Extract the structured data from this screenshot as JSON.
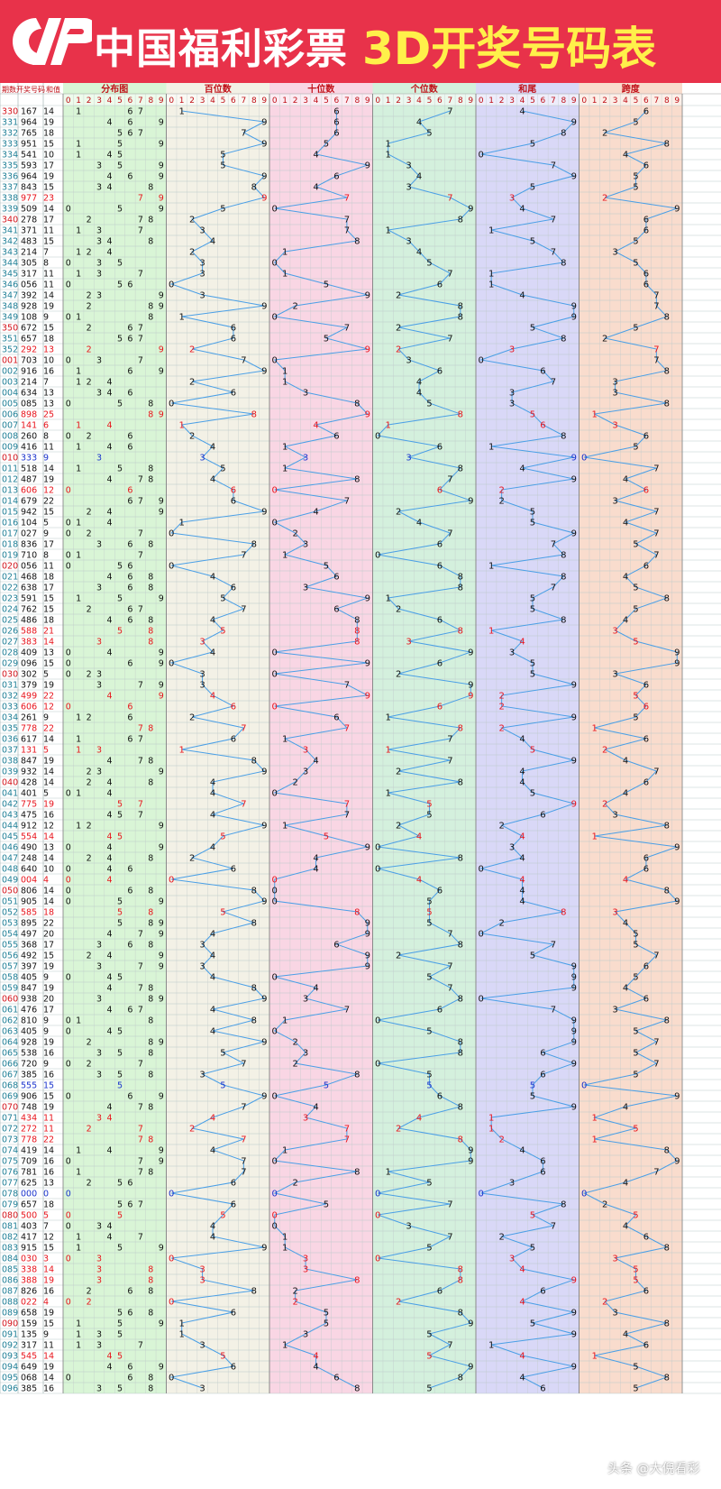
{
  "header": {
    "brand_name": "中国福利彩票",
    "chart_title": "3D开奖号码表",
    "logo_icon": "cwl-logo-icon"
  },
  "watermark": "头条 @大倪看彩",
  "colors": {
    "header_bg": "#e8324a",
    "title_yellow": "#fff04a",
    "line_blue": "#4a9fe6",
    "hot_red": "#e8141c",
    "rare_blue": "#1a33cc",
    "period_red": "#d4141c",
    "period_teal": "#1f7f96"
  },
  "chart_data": {
    "type": "table",
    "title": "3D开奖号码表",
    "column_headers": {
      "period": "期数",
      "number": "开奖号码",
      "sum": "和值"
    },
    "sections": [
      {
        "name": "分布图",
        "bg": "#d9f5d6"
      },
      {
        "name": "百位数",
        "bg": "#f3f1e6"
      },
      {
        "name": "十位数",
        "bg": "#f9d6e4"
      },
      {
        "name": "个位数",
        "bg": "#d4f0dd"
      },
      {
        "name": "和尾",
        "bg": "#d9d8f7"
      },
      {
        "name": "跨度",
        "bg": "#f9dccd"
      }
    ],
    "digit_labels": [
      "0",
      "1",
      "2",
      "3",
      "4",
      "5",
      "6",
      "7",
      "8",
      "9"
    ],
    "draws": [
      {
        "p": "330",
        "n": "167",
        "s": "14"
      },
      {
        "p": "331",
        "n": "964",
        "s": "19"
      },
      {
        "p": "332",
        "n": "765",
        "s": "18"
      },
      {
        "p": "333",
        "n": "951",
        "s": "15"
      },
      {
        "p": "334",
        "n": "541",
        "s": "10"
      },
      {
        "p": "335",
        "n": "593",
        "s": "17"
      },
      {
        "p": "336",
        "n": "964",
        "s": "19"
      },
      {
        "p": "337",
        "n": "843",
        "s": "15"
      },
      {
        "p": "338",
        "n": "977",
        "s": "23"
      },
      {
        "p": "339",
        "n": "509",
        "s": "14"
      },
      {
        "p": "340",
        "n": "278",
        "s": "17"
      },
      {
        "p": "341",
        "n": "371",
        "s": "11"
      },
      {
        "p": "342",
        "n": "483",
        "s": "15"
      },
      {
        "p": "343",
        "n": "214",
        "s": "7"
      },
      {
        "p": "344",
        "n": "305",
        "s": "8"
      },
      {
        "p": "345",
        "n": "317",
        "s": "11"
      },
      {
        "p": "346",
        "n": "056",
        "s": "11"
      },
      {
        "p": "347",
        "n": "392",
        "s": "14"
      },
      {
        "p": "348",
        "n": "928",
        "s": "19"
      },
      {
        "p": "349",
        "n": "108",
        "s": "9"
      },
      {
        "p": "350",
        "n": "672",
        "s": "15"
      },
      {
        "p": "351",
        "n": "657",
        "s": "18"
      },
      {
        "p": "352",
        "n": "292",
        "s": "13"
      },
      {
        "p": "001",
        "n": "703",
        "s": "10"
      },
      {
        "p": "002",
        "n": "916",
        "s": "16"
      },
      {
        "p": "003",
        "n": "214",
        "s": "7"
      },
      {
        "p": "004",
        "n": "634",
        "s": "13"
      },
      {
        "p": "005",
        "n": "085",
        "s": "13"
      },
      {
        "p": "006",
        "n": "898",
        "s": "25"
      },
      {
        "p": "007",
        "n": "141",
        "s": "6"
      },
      {
        "p": "008",
        "n": "260",
        "s": "8"
      },
      {
        "p": "009",
        "n": "416",
        "s": "11"
      },
      {
        "p": "010",
        "n": "333",
        "s": "9"
      },
      {
        "p": "011",
        "n": "518",
        "s": "14"
      },
      {
        "p": "012",
        "n": "487",
        "s": "19"
      },
      {
        "p": "013",
        "n": "606",
        "s": "12"
      },
      {
        "p": "014",
        "n": "679",
        "s": "22"
      },
      {
        "p": "015",
        "n": "942",
        "s": "15"
      },
      {
        "p": "016",
        "n": "104",
        "s": "5"
      },
      {
        "p": "017",
        "n": "027",
        "s": "9"
      },
      {
        "p": "018",
        "n": "836",
        "s": "17"
      },
      {
        "p": "019",
        "n": "710",
        "s": "8"
      },
      {
        "p": "020",
        "n": "056",
        "s": "11"
      },
      {
        "p": "021",
        "n": "468",
        "s": "18"
      },
      {
        "p": "022",
        "n": "638",
        "s": "17"
      },
      {
        "p": "023",
        "n": "591",
        "s": "15"
      },
      {
        "p": "024",
        "n": "762",
        "s": "15"
      },
      {
        "p": "025",
        "n": "486",
        "s": "18"
      },
      {
        "p": "026",
        "n": "588",
        "s": "21"
      },
      {
        "p": "027",
        "n": "383",
        "s": "14"
      },
      {
        "p": "028",
        "n": "409",
        "s": "13"
      },
      {
        "p": "029",
        "n": "096",
        "s": "15"
      },
      {
        "p": "030",
        "n": "302",
        "s": "5"
      },
      {
        "p": "031",
        "n": "379",
        "s": "19"
      },
      {
        "p": "032",
        "n": "499",
        "s": "22"
      },
      {
        "p": "033",
        "n": "606",
        "s": "12"
      },
      {
        "p": "034",
        "n": "261",
        "s": "9"
      },
      {
        "p": "035",
        "n": "778",
        "s": "22"
      },
      {
        "p": "036",
        "n": "617",
        "s": "14"
      },
      {
        "p": "037",
        "n": "131",
        "s": "5"
      },
      {
        "p": "038",
        "n": "847",
        "s": "19"
      },
      {
        "p": "039",
        "n": "932",
        "s": "14"
      },
      {
        "p": "040",
        "n": "428",
        "s": "14"
      },
      {
        "p": "041",
        "n": "401",
        "s": "5"
      },
      {
        "p": "042",
        "n": "775",
        "s": "19"
      },
      {
        "p": "043",
        "n": "475",
        "s": "16"
      },
      {
        "p": "044",
        "n": "912",
        "s": "12"
      },
      {
        "p": "045",
        "n": "554",
        "s": "14"
      },
      {
        "p": "046",
        "n": "490",
        "s": "13"
      },
      {
        "p": "047",
        "n": "248",
        "s": "14"
      },
      {
        "p": "048",
        "n": "640",
        "s": "10"
      },
      {
        "p": "049",
        "n": "004",
        "s": "4"
      },
      {
        "p": "050",
        "n": "806",
        "s": "14"
      },
      {
        "p": "051",
        "n": "905",
        "s": "14"
      },
      {
        "p": "052",
        "n": "585",
        "s": "18"
      },
      {
        "p": "053",
        "n": "895",
        "s": "22"
      },
      {
        "p": "054",
        "n": "497",
        "s": "20"
      },
      {
        "p": "055",
        "n": "368",
        "s": "17"
      },
      {
        "p": "056",
        "n": "492",
        "s": "15"
      },
      {
        "p": "057",
        "n": "397",
        "s": "19"
      },
      {
        "p": "058",
        "n": "405",
        "s": "9"
      },
      {
        "p": "059",
        "n": "847",
        "s": "19"
      },
      {
        "p": "060",
        "n": "938",
        "s": "20"
      },
      {
        "p": "061",
        "n": "476",
        "s": "17"
      },
      {
        "p": "062",
        "n": "810",
        "s": "9"
      },
      {
        "p": "063",
        "n": "405",
        "s": "9"
      },
      {
        "p": "064",
        "n": "928",
        "s": "19"
      },
      {
        "p": "065",
        "n": "538",
        "s": "16"
      },
      {
        "p": "066",
        "n": "720",
        "s": "9"
      },
      {
        "p": "067",
        "n": "385",
        "s": "16"
      },
      {
        "p": "068",
        "n": "555",
        "s": "15"
      },
      {
        "p": "069",
        "n": "906",
        "s": "15"
      },
      {
        "p": "070",
        "n": "748",
        "s": "19"
      },
      {
        "p": "071",
        "n": "434",
        "s": "11"
      },
      {
        "p": "072",
        "n": "272",
        "s": "11"
      },
      {
        "p": "073",
        "n": "778",
        "s": "22"
      },
      {
        "p": "074",
        "n": "419",
        "s": "14"
      },
      {
        "p": "075",
        "n": "709",
        "s": "16"
      },
      {
        "p": "076",
        "n": "781",
        "s": "16"
      },
      {
        "p": "077",
        "n": "625",
        "s": "13"
      },
      {
        "p": "078",
        "n": "000",
        "s": "0"
      },
      {
        "p": "079",
        "n": "657",
        "s": "18"
      },
      {
        "p": "080",
        "n": "500",
        "s": "5"
      },
      {
        "p": "081",
        "n": "403",
        "s": "7"
      },
      {
        "p": "082",
        "n": "417",
        "s": "12"
      },
      {
        "p": "083",
        "n": "915",
        "s": "15"
      },
      {
        "p": "084",
        "n": "030",
        "s": "3"
      },
      {
        "p": "085",
        "n": "338",
        "s": "14"
      },
      {
        "p": "086",
        "n": "388",
        "s": "19"
      },
      {
        "p": "087",
        "n": "826",
        "s": "16"
      },
      {
        "p": "088",
        "n": "022",
        "s": "4"
      },
      {
        "p": "089",
        "n": "658",
        "s": "19"
      },
      {
        "p": "090",
        "n": "159",
        "s": "15"
      },
      {
        "p": "091",
        "n": "135",
        "s": "9"
      },
      {
        "p": "092",
        "n": "317",
        "s": "11"
      },
      {
        "p": "093",
        "n": "545",
        "s": "14"
      },
      {
        "p": "094",
        "n": "649",
        "s": "19"
      },
      {
        "p": "095",
        "n": "068",
        "s": "14"
      },
      {
        "p": "096",
        "n": "385",
        "s": "16"
      }
    ]
  }
}
